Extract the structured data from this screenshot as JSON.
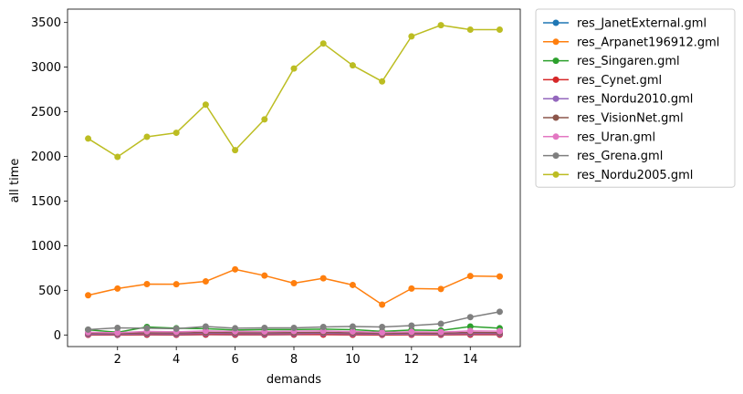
{
  "chart_data": {
    "type": "line",
    "xlabel": "demands",
    "ylabel": "all time",
    "xlim": [
      0.3,
      15.7
    ],
    "ylim": [
      -130,
      3650
    ],
    "x_ticks": [
      2,
      4,
      6,
      8,
      10,
      12,
      14
    ],
    "y_ticks": [
      0,
      500,
      1000,
      1500,
      2000,
      2500,
      3000,
      3500
    ],
    "legend_position": "outside-right",
    "grid": false,
    "x": [
      1,
      2,
      3,
      4,
      5,
      6,
      7,
      8,
      9,
      10,
      11,
      12,
      13,
      14,
      15
    ],
    "series": [
      {
        "name": "res_JanetExternal.gml",
        "color": "#1f77b4",
        "values": [
          2,
          1,
          3,
          2,
          4,
          3,
          3,
          4,
          5,
          3,
          2,
          4,
          3,
          4,
          4
        ]
      },
      {
        "name": "res_Arpanet196912.gml",
        "color": "#ff7f0e",
        "values": [
          445,
          520,
          570,
          568,
          600,
          735,
          665,
          580,
          635,
          560,
          340,
          520,
          515,
          660,
          655
        ]
      },
      {
        "name": "res_Singaren.gml",
        "color": "#2ca02c",
        "values": [
          58,
          30,
          90,
          75,
          70,
          55,
          60,
          60,
          65,
          60,
          40,
          55,
          50,
          95,
          75
        ]
      },
      {
        "name": "res_Cynet.gml",
        "color": "#d62728",
        "values": [
          3,
          2,
          4,
          3,
          5,
          4,
          4,
          5,
          4,
          3,
          2,
          3,
          3,
          4,
          4
        ]
      },
      {
        "name": "res_Nordu2010.gml",
        "color": "#9467bd",
        "values": [
          10,
          8,
          15,
          12,
          18,
          15,
          14,
          16,
          18,
          14,
          10,
          12,
          12,
          16,
          15
        ]
      },
      {
        "name": "res_VisionNet.gml",
        "color": "#8c564b",
        "values": [
          20,
          15,
          25,
          22,
          28,
          25,
          24,
          26,
          28,
          24,
          18,
          22,
          20,
          28,
          26
        ]
      },
      {
        "name": "res_Uran.gml",
        "color": "#e377c2",
        "values": [
          30,
          25,
          40,
          35,
          45,
          40,
          38,
          42,
          45,
          38,
          28,
          35,
          32,
          45,
          42
        ]
      },
      {
        "name": "res_Grena.gml",
        "color": "#7f7f7f",
        "values": [
          60,
          80,
          75,
          70,
          95,
          75,
          80,
          80,
          90,
          95,
          90,
          105,
          125,
          200,
          260
        ]
      },
      {
        "name": "res_Nordu2005.gml",
        "color": "#bcbd22",
        "values": [
          2200,
          1995,
          2220,
          2265,
          2580,
          2070,
          2415,
          2985,
          3265,
          3020,
          2840,
          3345,
          3470,
          3420,
          3420
        ]
      }
    ]
  }
}
